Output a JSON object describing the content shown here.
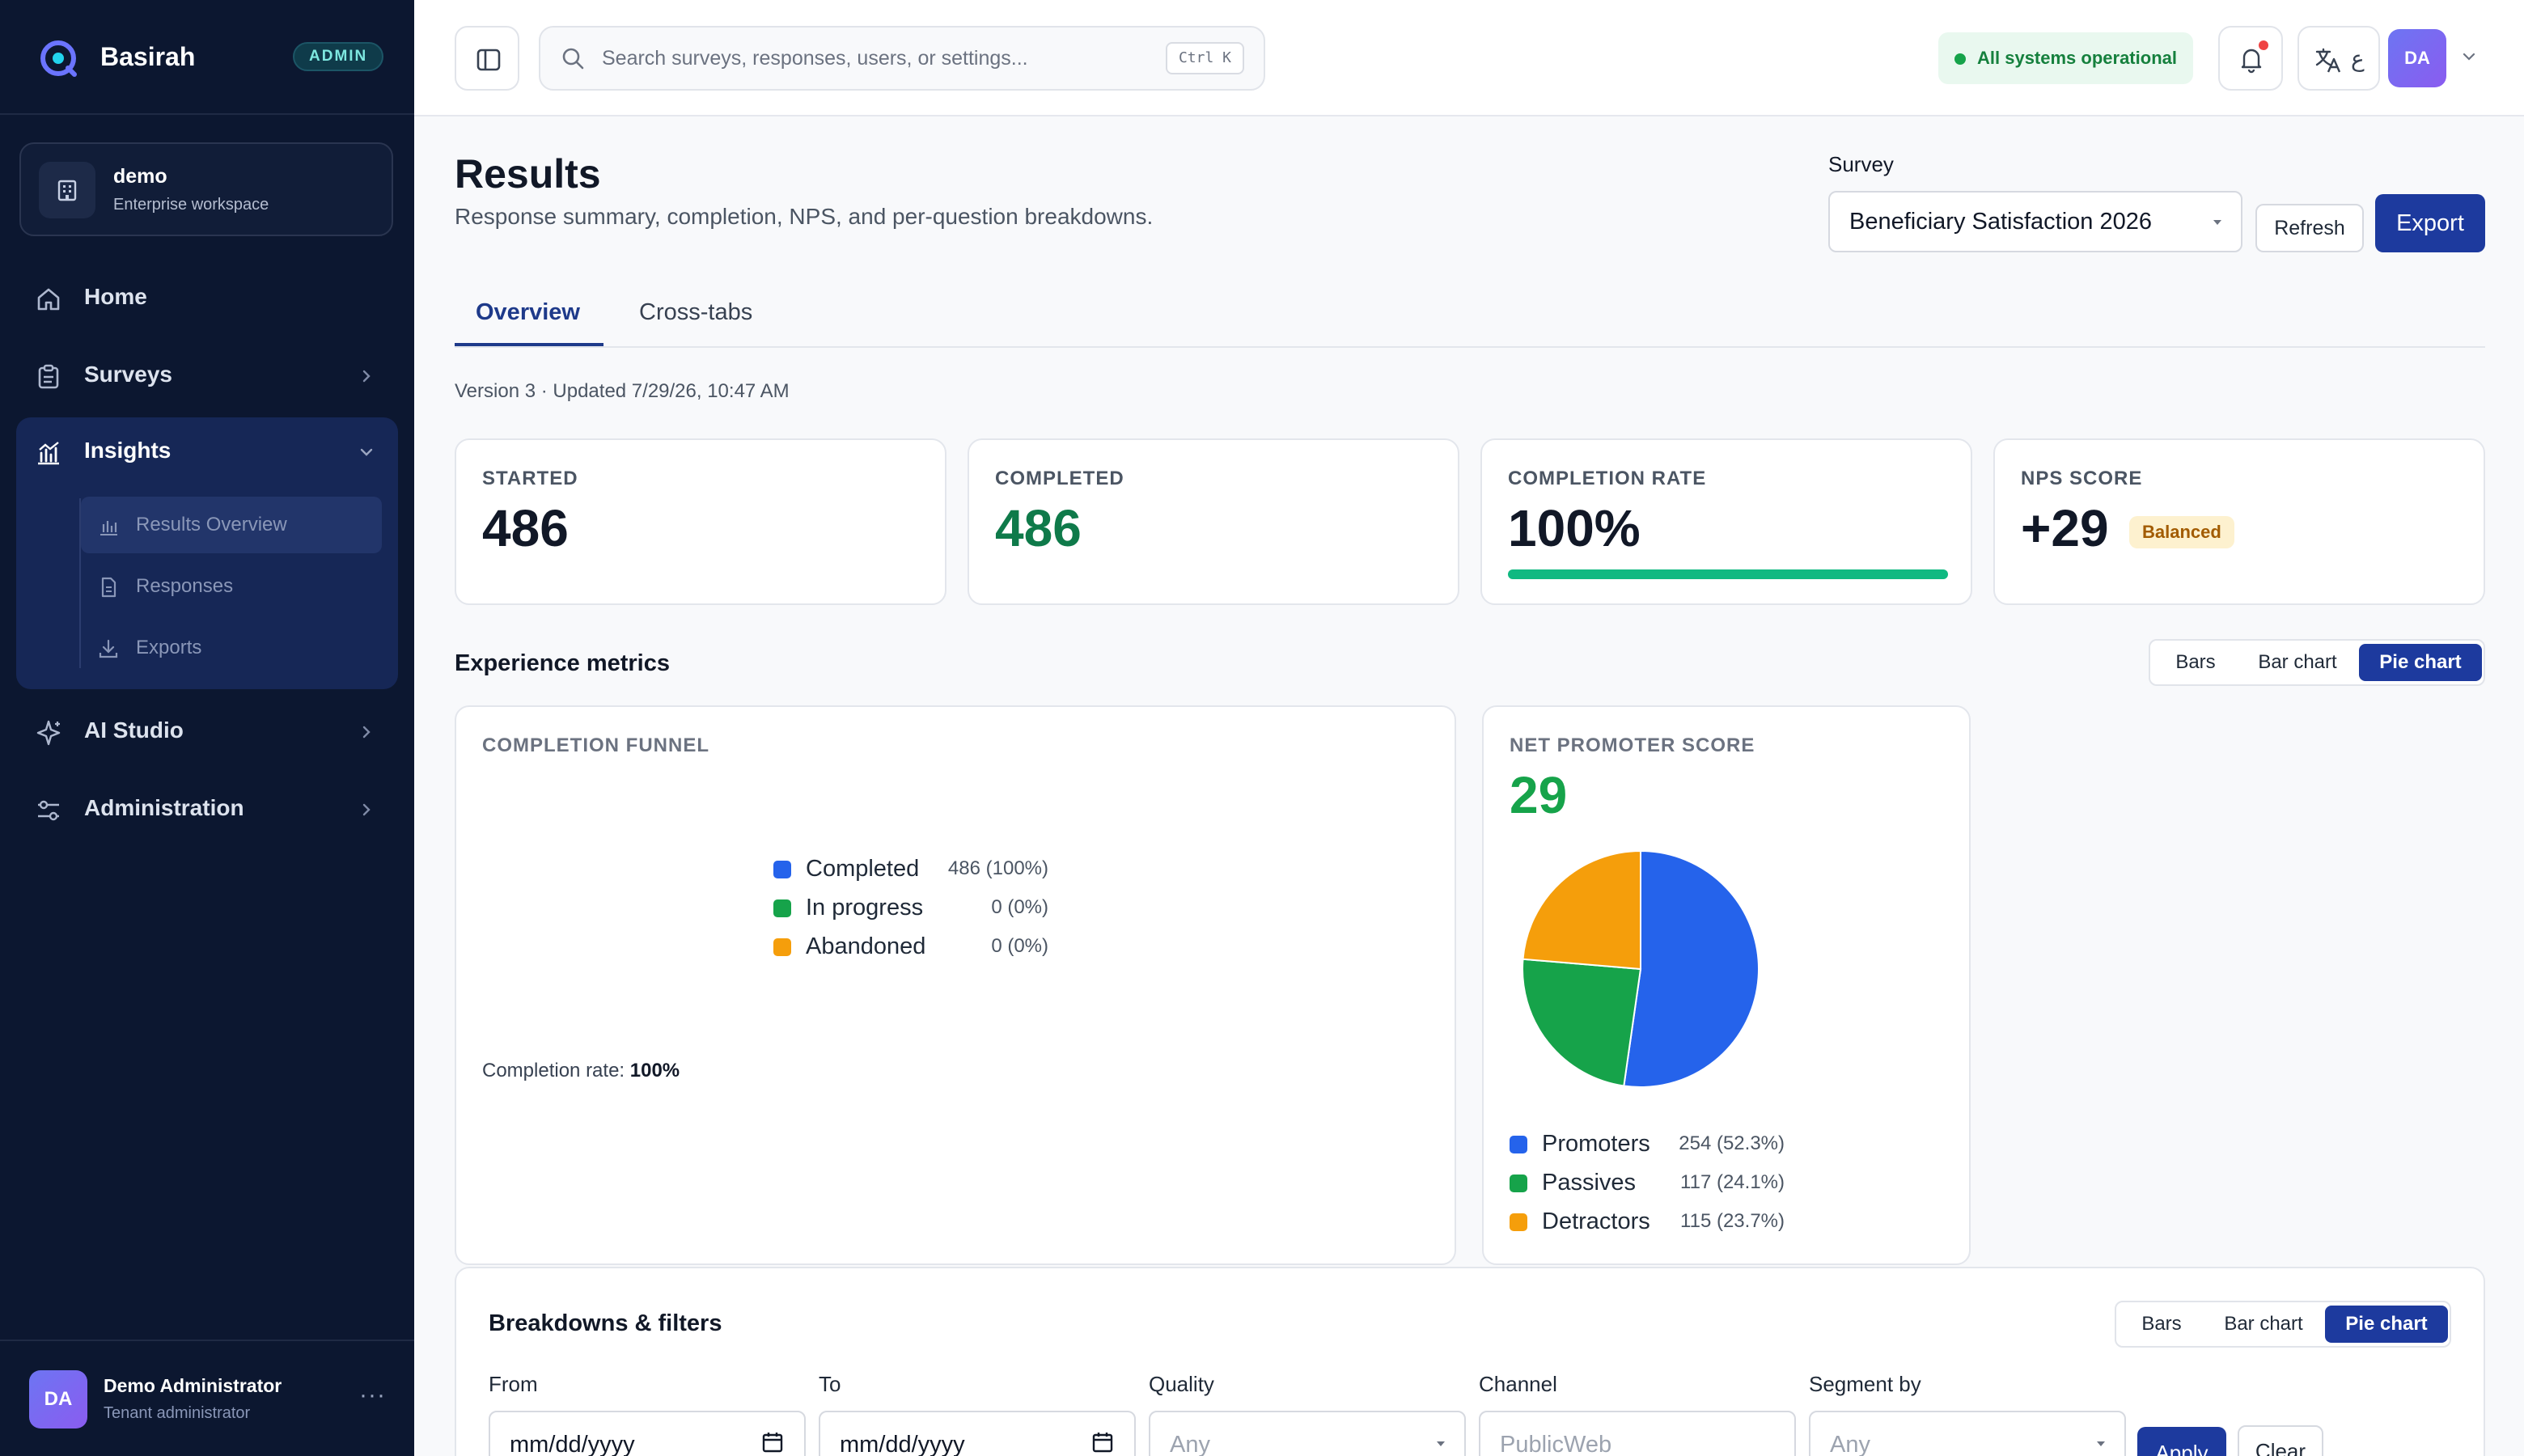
{
  "brand": {
    "name": "Basirah",
    "badge": "ADMIN"
  },
  "workspace": {
    "name": "demo",
    "subtitle": "Enterprise workspace"
  },
  "sidebar": {
    "items": [
      {
        "label": "Home",
        "icon": "home-icon"
      },
      {
        "label": "Surveys",
        "icon": "clipboard-icon"
      },
      {
        "label": "Insights",
        "icon": "chart-icon",
        "expanded": true
      },
      {
        "label": "AI Studio",
        "icon": "sparkle-icon"
      },
      {
        "label": "Administration",
        "icon": "sliders-icon"
      }
    ],
    "insights_children": [
      {
        "label": "Results Overview",
        "icon": "bar-chart-icon",
        "active": true
      },
      {
        "label": "Responses",
        "icon": "document-icon"
      },
      {
        "label": "Exports",
        "icon": "download-icon"
      }
    ]
  },
  "user": {
    "initials": "DA",
    "name": "Demo Administrator",
    "role": "Tenant administrator",
    "more": "···"
  },
  "topbar": {
    "search_placeholder": "Search surveys, responses, users, or settings...",
    "shortcut": "Ctrl K",
    "status": "All systems operational",
    "avatar_initials": "DA",
    "language_glyph": "ع"
  },
  "page": {
    "title": "Results",
    "subtitle": "Response summary, completion, NPS, and per-question breakdowns.",
    "survey_label": "Survey",
    "survey_selected": "Beneficiary Satisfaction 2026",
    "refresh_label": "Refresh",
    "export_label": "Export",
    "tabs": [
      "Overview",
      "Cross-tabs"
    ],
    "version_text": "Version 3 · Updated 7/29/26, 10:47 AM"
  },
  "kpis": [
    {
      "label": "STARTED",
      "value": "486"
    },
    {
      "label": "COMPLETED",
      "value": "486"
    },
    {
      "label": "COMPLETION RATE",
      "value": "100%",
      "progress": 1.0
    },
    {
      "label": "NPS SCORE",
      "value": "+29",
      "badge": "Balanced"
    }
  ],
  "experience": {
    "title": "Experience metrics",
    "view_options": [
      "Bars",
      "Bar chart",
      "Pie chart"
    ],
    "selected_view": "Pie chart"
  },
  "funnel": {
    "label": "COMPLETION FUNNEL",
    "legend": [
      {
        "name": "Completed",
        "value": "486 (100%)",
        "color": "#2563eb"
      },
      {
        "name": "In progress",
        "value": "0 (0%)",
        "color": "#16a34a"
      },
      {
        "name": "Abandoned",
        "value": "0 (0%)",
        "color": "#f59e0b"
      }
    ],
    "rate_label": "Completion rate:",
    "rate_value": "100%"
  },
  "nps": {
    "label": "NET PROMOTER SCORE",
    "value": "29",
    "legend": [
      {
        "name": "Promoters",
        "value": "254 (52.3%)",
        "color": "#2563eb"
      },
      {
        "name": "Passives",
        "value": "117 (24.1%)",
        "color": "#16a34a"
      },
      {
        "name": "Detractors",
        "value": "115 (23.7%)",
        "color": "#f59e0b"
      }
    ]
  },
  "chart_data": {
    "type": "pie",
    "categories": [
      "Promoters",
      "Passives",
      "Detractors"
    ],
    "values": [
      254,
      117,
      115
    ],
    "colors": [
      "#2563eb",
      "#16a34a",
      "#f59e0b"
    ]
  },
  "filters": {
    "title": "Breakdowns & filters",
    "view_options": [
      "Bars",
      "Bar chart",
      "Pie chart"
    ],
    "selected_view": "Pie chart",
    "fields": [
      {
        "label": "From",
        "value": "mm/dd/yyyy",
        "kind": "date"
      },
      {
        "label": "To",
        "value": "mm/dd/yyyy",
        "kind": "date"
      },
      {
        "label": "Quality",
        "value": "Any",
        "kind": "select"
      },
      {
        "label": "Channel",
        "value": "PublicWeb",
        "kind": "text"
      },
      {
        "label": "Segment by",
        "value": "Any",
        "kind": "select"
      }
    ],
    "apply_label": "Apply",
    "clear_label": "Clear"
  }
}
